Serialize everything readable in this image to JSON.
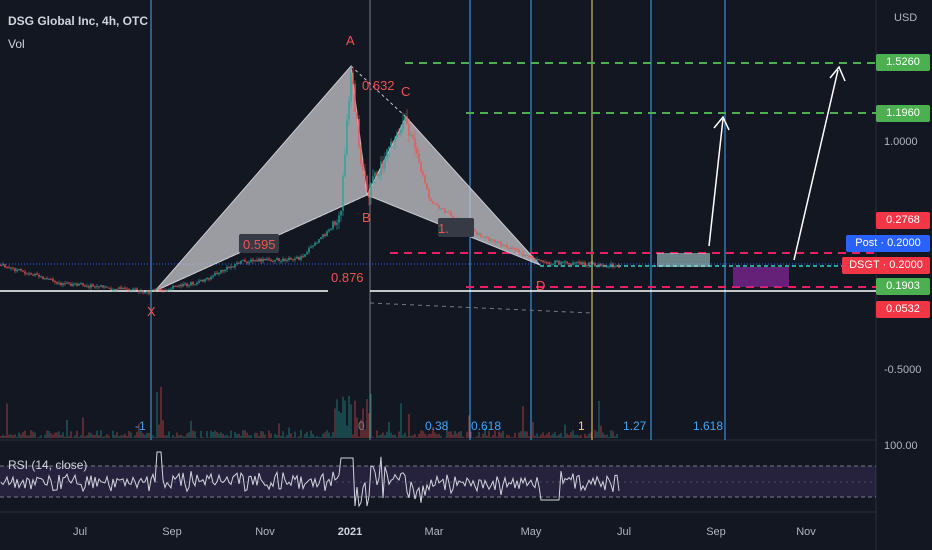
{
  "header": {
    "title": "DSG Global Inc, 4h, OTC",
    "volume_label": "Vol"
  },
  "currency": "USD",
  "colors": {
    "background": "#131722",
    "pattern_fill": "#c9c9ce",
    "bull": "#26a69a",
    "bear": "#ef5350",
    "label_red": "#ef5350",
    "fib_blue": "#42a5f5",
    "fib_yellow": "#f5d76e",
    "green_dash": "#4caf50",
    "pink_dash": "#e91e63",
    "rsi_line": "#d1d4dc",
    "rsi_band": "#7e57c2"
  },
  "price_tags": [
    {
      "key": "t1526",
      "text": "1.5260",
      "color": "#4caf50"
    },
    {
      "key": "t1196",
      "text": "1.1960",
      "color": "#4caf50"
    },
    {
      "key": "t2768",
      "text": "0.2768",
      "color": "#f23645"
    },
    {
      "key": "tpost",
      "text": "Post · 0.2000",
      "color": "#2962ff"
    },
    {
      "key": "tdsgt",
      "text": "DSGT · 0.2000",
      "color": "#f23645"
    },
    {
      "key": "t1903",
      "text": "0.1903",
      "color": "#4caf50"
    },
    {
      "key": "t0532",
      "text": "0.0532",
      "color": "#f23645"
    }
  ],
  "price_ticks": [
    "1.0000",
    "-0.5000"
  ],
  "rsi": {
    "label": "RSI (14, close)",
    "scale_label": "100.00",
    "upper": 70,
    "lower": 30
  },
  "time_axis": [
    "Jul",
    "Sep",
    "Nov",
    "2021",
    "Mar",
    "May",
    "Jul",
    "Sep",
    "Nov"
  ],
  "pattern": {
    "type": "Bat harmonic",
    "points": {
      "X": "X",
      "A": "A",
      "B": "B",
      "C": "C",
      "D": "D"
    },
    "ratios": {
      "XB": "0.595",
      "AC": "0.632",
      "BD": "1.",
      "XD": "0.876"
    }
  },
  "fib_time_labels": [
    "-1",
    "0",
    "0.38",
    "0.618",
    "1",
    "1.27",
    "1.618"
  ],
  "targets": [
    "1.1960",
    "1.5260"
  ],
  "chart_data": {
    "type": "candlestick",
    "title": "DSG Global Inc, 4h, OTC",
    "x_range": [
      "2020-05",
      "2021-11"
    ],
    "y_unit": "USD",
    "key_prices": {
      "X": 0.05,
      "A": 1.51,
      "B": 0.35,
      "C": 1.1,
      "D": 0.19,
      "last": 0.2
    },
    "levels": [
      1.526,
      1.196,
      0.2768,
      0.2,
      0.1903,
      0.0532
    ],
    "projected_targets": [
      1.196,
      1.526
    ],
    "rsi_range": [
      0,
      100
    ],
    "scale": "log"
  }
}
